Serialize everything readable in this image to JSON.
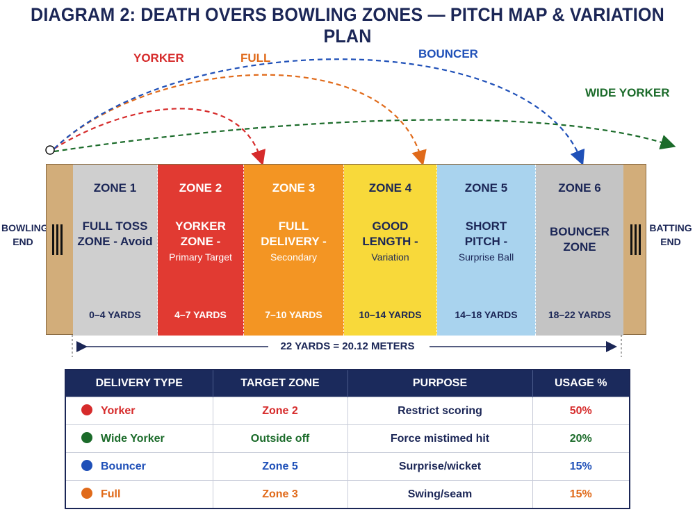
{
  "title": "DIAGRAM 2: DEATH OVERS BOWLING ZONES — PITCH MAP & VARIATION PLAN",
  "colors": {
    "navy": "#1b2656",
    "yorker": "#d62b2b",
    "full": "#e06a1a",
    "bouncer": "#1f50b8",
    "wide_yorker": "#1b6b2a"
  },
  "trajectories": {
    "yorker": {
      "label": "YORKER",
      "color": "#d62b2b"
    },
    "full": {
      "label": "FULL",
      "color": "#e06a1a"
    },
    "bouncer": {
      "label": "BOUNCER",
      "color": "#1f50b8"
    },
    "wide_yorker": {
      "label": "WIDE YORKER",
      "color": "#1b6b2a"
    }
  },
  "ends": {
    "bowling": [
      "BOWLING",
      "END"
    ],
    "batting": [
      "BATTING",
      "END"
    ]
  },
  "zones": [
    {
      "name": "ZONE 1",
      "desc": [
        "FULL TOSS",
        "ZONE - Avoid"
      ],
      "range": "0–4 YARDS",
      "color": "#cfcfcf"
    },
    {
      "name": "ZONE 2",
      "desc": [
        "YORKER",
        "ZONE -"
      ],
      "sub": "Primary Target",
      "range": "4–7 YARDS",
      "color": "#e13a32"
    },
    {
      "name": "ZONE 3",
      "desc": [
        "FULL",
        "DELIVERY -"
      ],
      "sub": "Secondary",
      "range": "7–10 YARDS",
      "color": "#f39523"
    },
    {
      "name": "ZONE 4",
      "desc": [
        "GOOD",
        "LENGTH -"
      ],
      "sub": "Variation",
      "range": "10–14 YARDS",
      "color": "#f8d93a"
    },
    {
      "name": "ZONE 5",
      "desc": [
        "SHORT",
        "PITCH -"
      ],
      "sub": "Surprise Ball",
      "range": "14–18 YARDS",
      "color": "#a9d3ee"
    },
    {
      "name": "ZONE 6",
      "desc": [
        "BOUNCER",
        "ZONE"
      ],
      "range": "18–22 YARDS",
      "color": "#c4c4c4"
    }
  ],
  "measure": "22 YARDS = 20.12 METERS",
  "table": {
    "headers": [
      "DELIVERY TYPE",
      "TARGET ZONE",
      "PURPOSE",
      "USAGE %"
    ],
    "rows": [
      {
        "type": "Yorker",
        "zone": "Zone 2",
        "purpose": "Restrict scoring",
        "usage": "50%",
        "color": "#d62b2b"
      },
      {
        "type": "Wide Yorker",
        "zone": "Outside off",
        "purpose": "Force mistimed hit",
        "usage": "20%",
        "color": "#1b6b2a"
      },
      {
        "type": "Bouncer",
        "zone": "Zone 5",
        "purpose": "Surprise/wicket",
        "usage": "15%",
        "color": "#1f50b8"
      },
      {
        "type": "Full",
        "zone": "Zone 3",
        "purpose": "Swing/seam",
        "usage": "15%",
        "color": "#e06a1a"
      }
    ]
  }
}
